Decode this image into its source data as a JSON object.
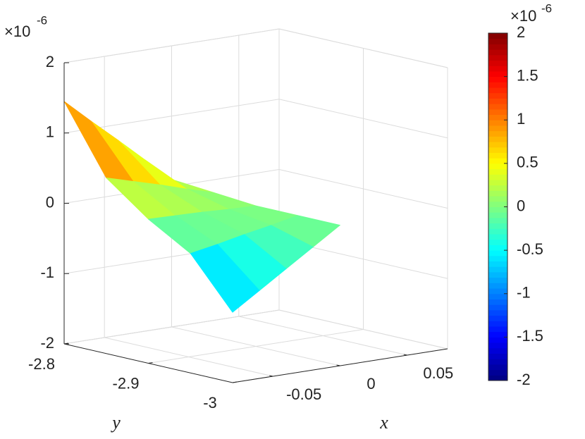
{
  "chart_data": {
    "type": "surface",
    "z_multiplier": "×10",
    "z_exponent": "-6",
    "x_label": "x",
    "y_label": "y",
    "x": [
      -0.08,
      -0.06,
      -0.04,
      -0.02,
      0
    ],
    "y": [
      -3,
      -2.95,
      -2.9,
      -2.85,
      -2.8
    ],
    "z": [
      [
        -1.0,
        -0.75,
        -0.5,
        -0.25,
        0
      ],
      [
        -0.3,
        -0.23,
        -0.15,
        -0.08,
        0
      ],
      [
        0.05,
        0.04,
        0.03,
        0.01,
        0
      ],
      [
        0.5,
        0.39,
        0.28,
        0.16,
        0.05
      ],
      [
        1.45,
        1.11,
        0.78,
        0.44,
        0.1
      ]
    ],
    "xlim": [
      -0.08,
      0.08
    ],
    "ylim": [
      -3,
      -2.8
    ],
    "zlim": [
      -2,
      2
    ],
    "xticks": [
      -0.05,
      0,
      0.05
    ],
    "yticks": [
      -3,
      -2.9,
      -2.8
    ],
    "zticks": [
      -2,
      -1,
      0,
      1,
      2
    ],
    "grid": true,
    "colormap": "jet",
    "colorbar": {
      "clim": [
        -2,
        2
      ],
      "ticks": [
        -2,
        -1.5,
        -1,
        -0.5,
        0,
        0.5,
        1,
        1.5,
        2
      ],
      "multiplier": "×10",
      "exponent": "-6"
    }
  }
}
